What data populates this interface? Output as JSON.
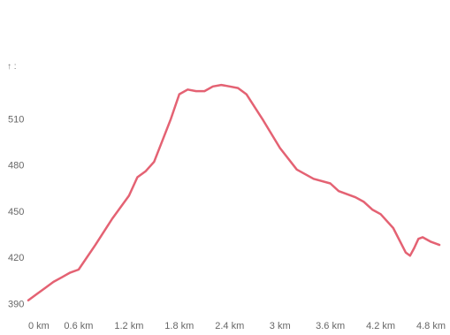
{
  "chart_data": {
    "type": "line",
    "title": "",
    "xlabel": "",
    "ylabel": "",
    "y_top_label": "↑ :",
    "xlim": [
      0,
      4.9
    ],
    "ylim": [
      389,
      547
    ],
    "x_ticks": [
      0,
      0.6,
      1.2,
      1.8,
      2.4,
      3.0,
      3.6,
      4.2,
      4.8
    ],
    "x_tick_labels": [
      "0 km",
      "0.6 km",
      "1.2 km",
      "1.8 km",
      "2.4 km",
      "3 km",
      "3.6 km",
      "4.2 km",
      "4.8 km"
    ],
    "y_ticks": [
      390,
      420,
      450,
      480,
      510
    ],
    "y_tick_labels": [
      "390",
      "420",
      "450",
      "480",
      "510"
    ],
    "grid": false,
    "line_color": "#e46273",
    "series": [
      {
        "x": [
          0,
          0.1,
          0.2,
          0.3,
          0.4,
          0.5,
          0.6,
          0.8,
          1.0,
          1.2,
          1.3,
          1.4,
          1.5,
          1.6,
          1.7,
          1.8,
          1.9,
          2.0,
          2.1,
          2.2,
          2.3,
          2.4,
          2.5,
          2.6,
          2.8,
          3.0,
          3.2,
          3.4,
          3.6,
          3.7,
          3.8,
          3.9,
          4.0,
          4.1,
          4.2,
          4.35,
          4.5,
          4.55,
          4.6,
          4.65,
          4.7,
          4.8,
          4.9
        ],
        "y": [
          392,
          396,
          400,
          404,
          407,
          410,
          412,
          428,
          445,
          460,
          472,
          476,
          482,
          496,
          510,
          526,
          529,
          528,
          528,
          531,
          532,
          531,
          530,
          526,
          509,
          491,
          477,
          471,
          468,
          463,
          461,
          459,
          456,
          451,
          448,
          439,
          423,
          421,
          426,
          432,
          433,
          430,
          428
        ]
      }
    ]
  }
}
